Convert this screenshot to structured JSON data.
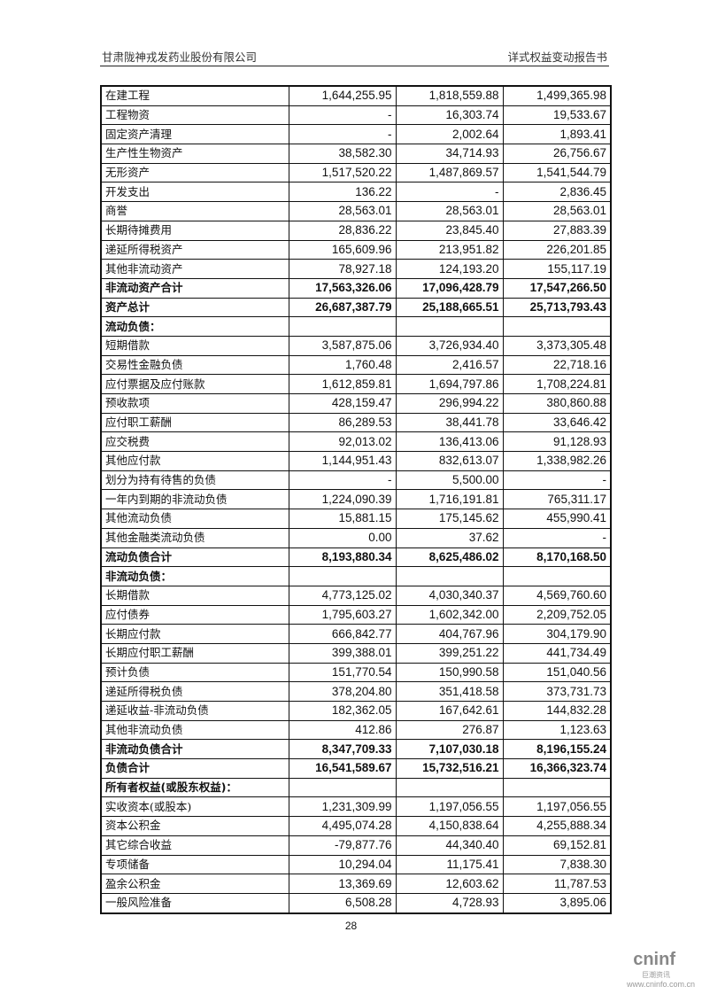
{
  "header": {
    "company": "甘肃陇神戎发药业股份有限公司",
    "doc_title": "详式权益变动报告书"
  },
  "rows": [
    {
      "label": "在建工程",
      "v": [
        "1,644,255.95",
        "1,818,559.88",
        "1,499,365.98"
      ]
    },
    {
      "label": "工程物资",
      "v": [
        "-",
        "16,303.74",
        "19,533.67"
      ]
    },
    {
      "label": "固定资产清理",
      "v": [
        "-",
        "2,002.64",
        "1,893.41"
      ]
    },
    {
      "label": "生产性生物资产",
      "v": [
        "38,582.30",
        "34,714.93",
        "26,756.67"
      ]
    },
    {
      "label": "无形资产",
      "v": [
        "1,517,520.22",
        "1,487,869.57",
        "1,541,544.79"
      ]
    },
    {
      "label": "开发支出",
      "v": [
        "136.22",
        "-",
        "2,836.45"
      ]
    },
    {
      "label": "商誉",
      "v": [
        "28,563.01",
        "28,563.01",
        "28,563.01"
      ]
    },
    {
      "label": "长期待摊费用",
      "v": [
        "28,836.22",
        "23,845.40",
        "27,883.39"
      ]
    },
    {
      "label": "递延所得税资产",
      "v": [
        "165,609.96",
        "213,951.82",
        "226,201.85"
      ]
    },
    {
      "label": "其他非流动资产",
      "v": [
        "78,927.18",
        "124,193.20",
        "155,117.19"
      ]
    },
    {
      "label": "非流动资产合计",
      "bold": true,
      "v": [
        "17,563,326.06",
        "17,096,428.79",
        "17,547,266.50"
      ]
    },
    {
      "label": "资产总计",
      "bold": true,
      "v": [
        "26,687,387.79",
        "25,188,665.51",
        "25,713,793.43"
      ]
    },
    {
      "label": "流动负债：",
      "bold": true,
      "v": [
        "",
        "",
        ""
      ]
    },
    {
      "label": "短期借款",
      "v": [
        "3,587,875.06",
        "3,726,934.40",
        "3,373,305.48"
      ]
    },
    {
      "label": "交易性金融负债",
      "v": [
        "1,760.48",
        "2,416.57",
        "22,718.16"
      ]
    },
    {
      "label": "应付票据及应付账款",
      "v": [
        "1,612,859.81",
        "1,694,797.86",
        "1,708,224.81"
      ]
    },
    {
      "label": "预收款项",
      "v": [
        "428,159.47",
        "296,994.22",
        "380,860.88"
      ]
    },
    {
      "label": "应付职工薪酬",
      "v": [
        "86,289.53",
        "38,441.78",
        "33,646.42"
      ]
    },
    {
      "label": "应交税费",
      "v": [
        "92,013.02",
        "136,413.06",
        "91,128.93"
      ]
    },
    {
      "label": "其他应付款",
      "v": [
        "1,144,951.43",
        "832,613.07",
        "1,338,982.26"
      ]
    },
    {
      "label": "划分为持有待售的负债",
      "v": [
        "-",
        "5,500.00",
        "-"
      ]
    },
    {
      "label": "一年内到期的非流动负债",
      "v": [
        "1,224,090.39",
        "1,716,191.81",
        "765,311.17"
      ]
    },
    {
      "label": "其他流动负债",
      "v": [
        "15,881.15",
        "175,145.62",
        "455,990.41"
      ]
    },
    {
      "label": "其他金融类流动负债",
      "v": [
        "0.00",
        "37.62",
        "-"
      ]
    },
    {
      "label": "流动负债合计",
      "bold": true,
      "v": [
        "8,193,880.34",
        "8,625,486.02",
        "8,170,168.50"
      ]
    },
    {
      "label": "非流动负债：",
      "bold": true,
      "v": [
        "",
        "",
        ""
      ]
    },
    {
      "label": "长期借款",
      "v": [
        "4,773,125.02",
        "4,030,340.37",
        "4,569,760.60"
      ]
    },
    {
      "label": "应付债券",
      "v": [
        "1,795,603.27",
        "1,602,342.00",
        "2,209,752.05"
      ]
    },
    {
      "label": "长期应付款",
      "v": [
        "666,842.77",
        "404,767.96",
        "304,179.90"
      ]
    },
    {
      "label": "长期应付职工薪酬",
      "v": [
        "399,388.01",
        "399,251.22",
        "441,734.49"
      ]
    },
    {
      "label": "预计负债",
      "v": [
        "151,770.54",
        "150,990.58",
        "151,040.56"
      ]
    },
    {
      "label": "递延所得税负债",
      "v": [
        "378,204.80",
        "351,418.58",
        "373,731.73"
      ]
    },
    {
      "label": "递延收益-非流动负债",
      "v": [
        "182,362.05",
        "167,642.61",
        "144,832.28"
      ]
    },
    {
      "label": "其他非流动负债",
      "v": [
        "412.86",
        "276.87",
        "1,123.63"
      ]
    },
    {
      "label": "非流动负债合计",
      "bold": true,
      "v": [
        "8,347,709.33",
        "7,107,030.18",
        "8,196,155.24"
      ]
    },
    {
      "label": "负债合计",
      "bold": true,
      "v": [
        "16,541,589.67",
        "15,732,516.21",
        "16,366,323.74"
      ]
    },
    {
      "label": "所有者权益(或股东权益)：",
      "bold": true,
      "v": [
        "",
        "",
        ""
      ]
    },
    {
      "label": "实收资本(或股本)",
      "v": [
        "1,231,309.99",
        "1,197,056.55",
        "1,197,056.55"
      ]
    },
    {
      "label": "资本公积金",
      "v": [
        "4,495,074.28",
        "4,150,838.64",
        "4,255,888.34"
      ]
    },
    {
      "label": "其它综合收益",
      "v": [
        "-79,877.76",
        "44,340.40",
        "69,152.81"
      ]
    },
    {
      "label": "专项储备",
      "v": [
        "10,294.04",
        "11,175.41",
        "7,838.30"
      ]
    },
    {
      "label": "盈余公积金",
      "v": [
        "13,369.69",
        "12,603.62",
        "11,787.53"
      ]
    },
    {
      "label": "一般风险准备",
      "v": [
        "6,508.28",
        "4,728.93",
        "3,895.06"
      ]
    }
  ],
  "page_number": "28",
  "watermark": {
    "brand": "cninf",
    "brand_cn": "巨潮资讯",
    "url": "www.cninfo.com.cn"
  }
}
